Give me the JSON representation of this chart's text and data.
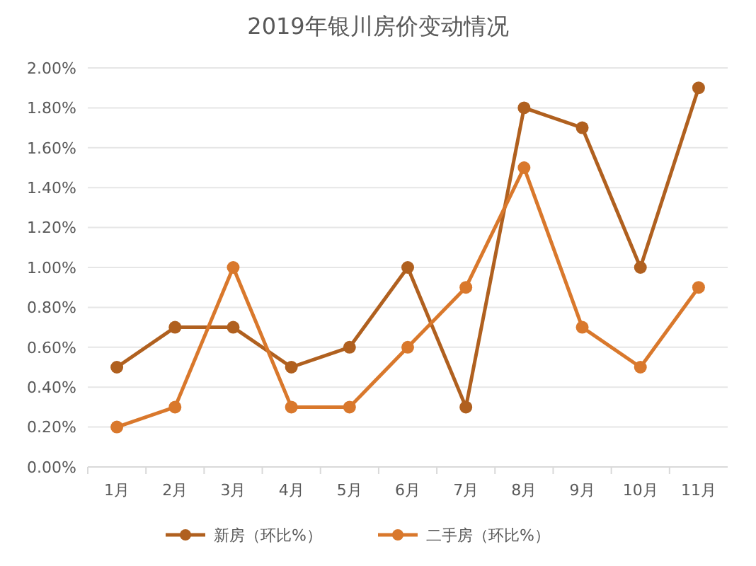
{
  "chart_data": {
    "type": "line",
    "title": "2019年银川房价变动情况",
    "categories": [
      "1月",
      "2月",
      "3月",
      "4月",
      "5月",
      "6月",
      "7月",
      "8月",
      "9月",
      "10月",
      "11月"
    ],
    "series": [
      {
        "name": "新房（环比%）",
        "color": "#b0601f",
        "values": [
          0.5,
          0.7,
          0.7,
          0.5,
          0.6,
          1.0,
          0.3,
          1.8,
          1.7,
          1.0,
          1.9
        ]
      },
      {
        "name": "二手房（环比%）",
        "color": "#d9782c",
        "values": [
          0.2,
          0.3,
          1.0,
          0.3,
          0.3,
          0.6,
          0.9,
          1.5,
          0.7,
          0.5,
          0.9
        ]
      }
    ],
    "ylim": [
      0,
      2
    ],
    "yticks": [
      {
        "value": 0,
        "label": "0.00%"
      },
      {
        "value": 0.2,
        "label": "0.20%"
      },
      {
        "value": 0.4,
        "label": "0.40%"
      },
      {
        "value": 0.6,
        "label": "0.60%"
      },
      {
        "value": 0.8,
        "label": "0.80%"
      },
      {
        "value": 1.0,
        "label": "1.00%"
      },
      {
        "value": 1.2,
        "label": "1.20%"
      },
      {
        "value": 1.4,
        "label": "1.40%"
      },
      {
        "value": 1.6,
        "label": "1.60%"
      },
      {
        "value": 1.8,
        "label": "1.80%"
      },
      {
        "value": 2.0,
        "label": "2.00%"
      }
    ],
    "grid": "y",
    "legend": "bottom",
    "marker": "circle",
    "line_style": "solid"
  }
}
